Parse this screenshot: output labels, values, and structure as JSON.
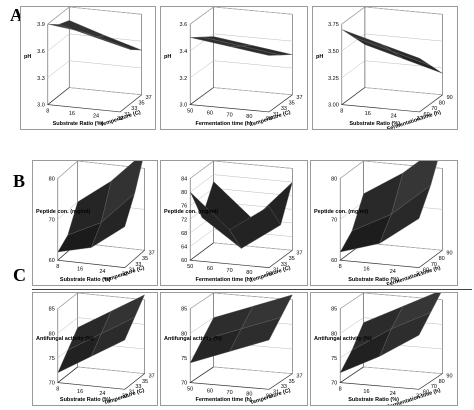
{
  "sections": [
    "A",
    "B",
    "C"
  ],
  "panels": [
    {
      "section": "A",
      "chart_data": {
        "type": "surface3d",
        "zlabel": "pH",
        "zticks": [
          "3.0",
          "3.3",
          "3.6",
          "3.9"
        ],
        "xlabel": "Substrate Ratio (%)",
        "xticks": [
          "8",
          "16",
          "24",
          "32"
        ],
        "ylabel": "Temperature (C)",
        "yticks": [
          "31",
          "33",
          "35",
          "37"
        ],
        "surface": [
          [
            3.9,
            3.85,
            3.75
          ],
          [
            3.8,
            3.7,
            3.6
          ],
          [
            3.75,
            3.62,
            3.5
          ]
        ]
      }
    },
    {
      "section": "A",
      "chart_data": {
        "type": "surface3d",
        "zlabel": "pH",
        "zticks": [
          "3.0",
          "3.2",
          "3.4",
          "3.6"
        ],
        "xlabel": "Fermentation time (h)",
        "xticks": [
          "50",
          "60",
          "70",
          "80",
          "90"
        ],
        "ylabel": "Temperature (C)",
        "yticks": [
          "31",
          "33",
          "35",
          "37"
        ],
        "surface": [
          [
            3.5,
            3.46,
            3.42
          ],
          [
            3.44,
            3.4,
            3.36
          ],
          [
            3.38,
            3.34,
            3.3
          ]
        ]
      }
    },
    {
      "section": "A",
      "chart_data": {
        "type": "surface3d",
        "zlabel": "pH",
        "zticks": [
          "3.00",
          "3.25",
          "3.50",
          "3.75"
        ],
        "xlabel": "Substrate Ratio (%)",
        "xticks": [
          "8",
          "16",
          "24",
          "32"
        ],
        "ylabel": "Fermentation time (h)",
        "yticks": [
          "60",
          "70",
          "80",
          "90"
        ],
        "surface": [
          [
            3.7,
            3.6,
            3.5
          ],
          [
            3.55,
            3.45,
            3.35
          ],
          [
            3.4,
            3.3,
            3.2
          ]
        ]
      }
    },
    {
      "section": "B",
      "chart_data": {
        "type": "surface3d",
        "zlabel": "Peptide con. (mg/ml)",
        "zticks": [
          "60",
          "70",
          "80"
        ],
        "xlabel": "Substrate Ratio (%)",
        "xticks": [
          "8",
          "16",
          "24",
          "32"
        ],
        "ylabel": "Temperature (C)",
        "yticks": [
          "31",
          "33",
          "35",
          "37"
        ],
        "surface": [
          [
            62,
            64,
            70
          ],
          [
            64,
            68,
            76
          ],
          [
            70,
            76,
            84
          ]
        ]
      }
    },
    {
      "section": "B",
      "chart_data": {
        "type": "surface3d",
        "zlabel": "Peptide con. (mg/ml)",
        "zticks": [
          "60",
          "64",
          "68",
          "72",
          "76",
          "80",
          "84"
        ],
        "xlabel": "Fermentation time (h)",
        "xticks": [
          "50",
          "60",
          "70",
          "80",
          "90"
        ],
        "ylabel": "Temperature (C)",
        "yticks": [
          "31",
          "33",
          "35",
          "37"
        ],
        "surface": [
          [
            80,
            70,
            78
          ],
          [
            70,
            62,
            70
          ],
          [
            78,
            68,
            80
          ]
        ]
      }
    },
    {
      "section": "B",
      "chart_data": {
        "type": "surface3d",
        "zlabel": "Peptide con. (mg/ml)",
        "zticks": [
          "60",
          "70",
          "80"
        ],
        "xlabel": "Substrate Ratio (%)",
        "xticks": [
          "8",
          "16",
          "24",
          "32"
        ],
        "ylabel": "Fermentation time (h)",
        "yticks": [
          "60",
          "70",
          "80",
          "90"
        ],
        "surface": [
          [
            62,
            65,
            72
          ],
          [
            65,
            70,
            78
          ],
          [
            72,
            78,
            86
          ]
        ]
      }
    },
    {
      "section": "C",
      "chart_data": {
        "type": "surface3d",
        "zlabel": "Antifungal activity (%)",
        "zticks": [
          "70",
          "75",
          "80",
          "85"
        ],
        "xlabel": "Substrate Ratio (%)",
        "xticks": [
          "8",
          "16",
          "24",
          "32"
        ],
        "ylabel": "Temperature (C)",
        "yticks": [
          "31",
          "33",
          "35",
          "37"
        ],
        "surface": [
          [
            72,
            76,
            80
          ],
          [
            75,
            79,
            83
          ],
          [
            78,
            82,
            86
          ]
        ]
      }
    },
    {
      "section": "C",
      "chart_data": {
        "type": "surface3d",
        "zlabel": "Antifungal activity (%)",
        "zticks": [
          "70",
          "75",
          "80",
          "85"
        ],
        "xlabel": "Fermentation time (h)",
        "xticks": [
          "50",
          "60",
          "70",
          "80",
          "90"
        ],
        "ylabel": "Temperature (C)",
        "yticks": [
          "31",
          "33",
          "35",
          "37"
        ],
        "surface": [
          [
            74,
            77,
            80
          ],
          [
            77,
            80,
            83
          ],
          [
            80,
            83,
            86
          ]
        ]
      }
    },
    {
      "section": "C",
      "chart_data": {
        "type": "surface3d",
        "zlabel": "Antifungal activity (%)",
        "zticks": [
          "70",
          "75",
          "80",
          "85"
        ],
        "xlabel": "Substrate Ratio (%)",
        "xticks": [
          "8",
          "16",
          "24",
          "32"
        ],
        "ylabel": "Fermentation time (h)",
        "yticks": [
          "60",
          "70",
          "80",
          "90"
        ],
        "surface": [
          [
            72,
            76,
            81
          ],
          [
            75,
            80,
            84
          ],
          [
            79,
            83,
            87
          ]
        ]
      }
    }
  ]
}
